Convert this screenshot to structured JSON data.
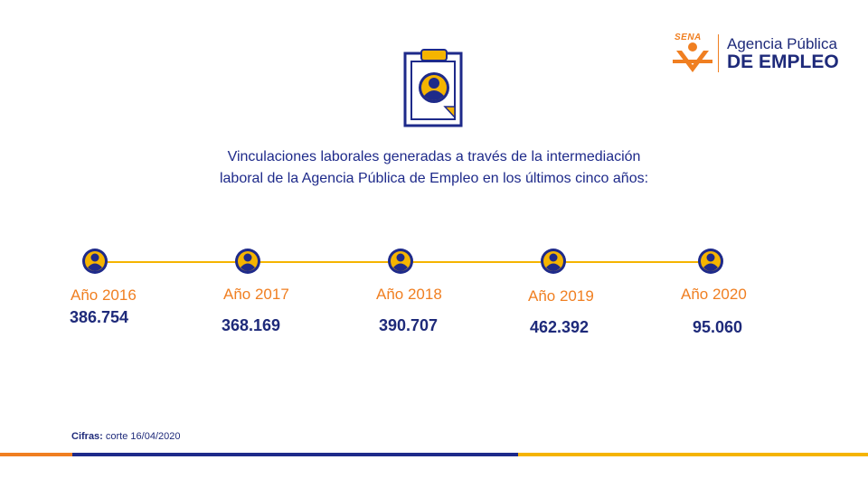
{
  "brand": {
    "sena_label": "SENA",
    "line1": "Agencia Pública",
    "line2": "DE EMPLEO",
    "colors": {
      "navy": "#1e2a8a",
      "orange": "#f07f21",
      "yellow": "#f5b400"
    }
  },
  "icons": {
    "header": "clipboard-user-icon",
    "timeline": "user-circle-icon"
  },
  "headline": {
    "line1": "Vinculaciones laborales generadas a través de la intermediación",
    "line2": "laboral de la Agencia Pública de Empleo en los últimos cinco años:"
  },
  "timeline": [
    {
      "year": "Año 2016",
      "value": "386.754"
    },
    {
      "year": "Año 2017",
      "value": "368.169"
    },
    {
      "year": "Año 2018",
      "value": "390.707"
    },
    {
      "year": "Año 2019",
      "value": "462.392"
    },
    {
      "year": "Año 2020",
      "value": "95.060"
    }
  ],
  "footnote": {
    "label": "Cifras:",
    "text": "corte 16/04/2020"
  }
}
